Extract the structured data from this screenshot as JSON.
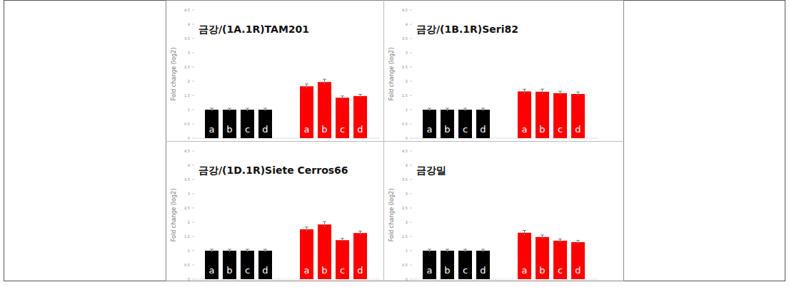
{
  "chart_data": [
    {
      "type": "bar",
      "title": "금강/(1A.1R)TAM201",
      "y_label": "Fold change (log2)",
      "categories": [
        "a",
        "b",
        "c",
        "d"
      ],
      "series": [
        {
          "color": "#000000",
          "values": [
            1,
            1,
            1,
            1
          ],
          "errors": [
            0.05,
            0.05,
            0.05,
            0.05
          ]
        },
        {
          "color": "#ff0000",
          "values": [
            1.82,
            1.97,
            1.42,
            1.48
          ],
          "errors": [
            0.08,
            0.1,
            0.06,
            0.06
          ]
        }
      ],
      "ylim": [
        0,
        4.5
      ],
      "yticks": [
        0,
        0.5,
        1,
        1.5,
        2,
        2.5,
        3,
        3.5,
        4,
        4.5
      ],
      "grid": false
    },
    {
      "type": "bar",
      "title": "금강/(1B.1R)Seri82",
      "y_label": "Fold change (log2)",
      "categories": [
        "a",
        "b",
        "c",
        "d"
      ],
      "series": [
        {
          "color": "#000000",
          "values": [
            1,
            1,
            1,
            1
          ],
          "errors": [
            0.05,
            0.05,
            0.05,
            0.05
          ]
        },
        {
          "color": "#ff0000",
          "values": [
            1.64,
            1.63,
            1.58,
            1.55
          ],
          "errors": [
            0.08,
            0.09,
            0.07,
            0.07
          ]
        }
      ],
      "ylim": [
        0,
        4.5
      ],
      "yticks": [
        0,
        0.5,
        1,
        1.5,
        2,
        2.5,
        3,
        3.5,
        4,
        4.5
      ],
      "grid": false
    },
    {
      "type": "bar",
      "title": "금강/(1D.1R)Siete Cerros66",
      "y_label": "Fold change (log2)",
      "categories": [
        "a",
        "b",
        "c",
        "d"
      ],
      "series": [
        {
          "color": "#000000",
          "values": [
            1,
            1,
            1,
            1
          ],
          "errors": [
            0.05,
            0.05,
            0.05,
            0.05
          ]
        },
        {
          "color": "#ff0000",
          "values": [
            1.75,
            1.92,
            1.37,
            1.62
          ],
          "errors": [
            0.08,
            0.1,
            0.06,
            0.07
          ]
        }
      ],
      "ylim": [
        0,
        4.5
      ],
      "yticks": [
        0,
        0.5,
        1,
        1.5,
        2,
        2.5,
        3,
        3.5,
        4,
        4.5
      ],
      "grid": false
    },
    {
      "type": "bar",
      "title": "금강밀",
      "y_label": "Fold change (log2)",
      "categories": [
        "a",
        "b",
        "c",
        "d"
      ],
      "series": [
        {
          "color": "#000000",
          "values": [
            1,
            1,
            1,
            1
          ],
          "errors": [
            0.05,
            0.05,
            0.05,
            0.05
          ]
        },
        {
          "color": "#ff0000",
          "values": [
            1.63,
            1.48,
            1.35,
            1.3
          ],
          "errors": [
            0.08,
            0.07,
            0.06,
            0.06
          ]
        }
      ],
      "ylim": [
        0,
        4.5
      ],
      "yticks": [
        0,
        0.5,
        1,
        1.5,
        2,
        2.5,
        3,
        3.5,
        4,
        4.5
      ],
      "grid": false
    }
  ]
}
